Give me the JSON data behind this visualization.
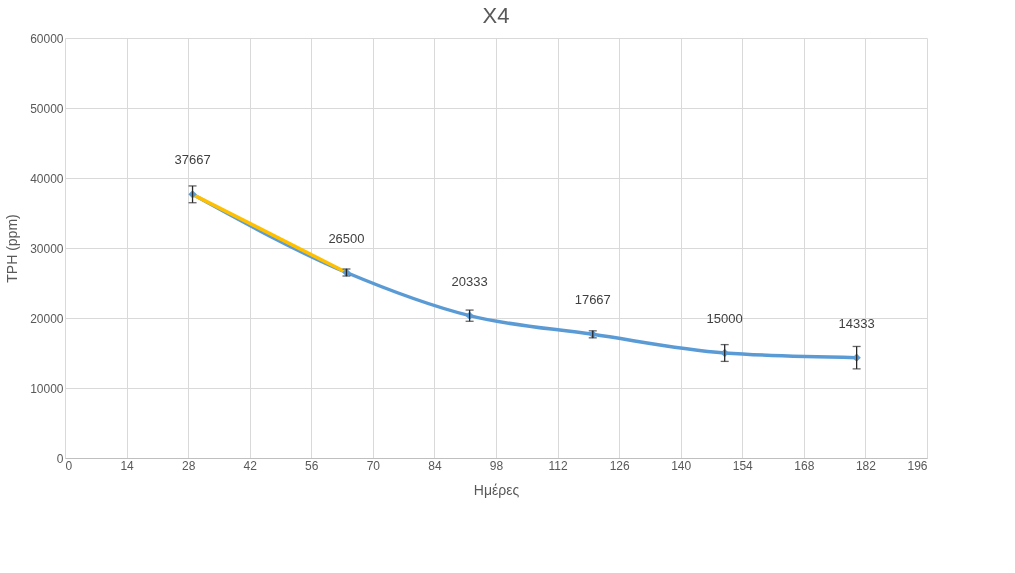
{
  "chart_data": {
    "type": "line",
    "title": "X4",
    "xlabel": "Ημέρες",
    "ylabel": "TPH (ppm)",
    "xlim": [
      0,
      196
    ],
    "xticks": [
      0,
      14,
      28,
      42,
      56,
      70,
      84,
      98,
      112,
      126,
      140,
      154,
      168,
      182,
      196
    ],
    "ylim": [
      0,
      60000
    ],
    "yticks": [
      0,
      10000,
      20000,
      30000,
      40000,
      50000,
      60000
    ],
    "grid": true,
    "line_style": "solid",
    "series": [
      {
        "color": "#5b9bd5",
        "marker": "diamond",
        "x": [
          29,
          64,
          92,
          120,
          150,
          180
        ],
        "values": [
          37667,
          26500,
          20333,
          17667,
          15000,
          14333
        ],
        "errors": [
          1200,
          500,
          800,
          500,
          1200,
          1600
        ],
        "value_labels": [
          "37667",
          "26500",
          "20333",
          "17667",
          "15000",
          "14333"
        ]
      },
      {
        "color": "#ffc000",
        "marker": "none",
        "x": [
          29,
          64
        ],
        "values": [
          37667,
          26500
        ]
      }
    ]
  }
}
